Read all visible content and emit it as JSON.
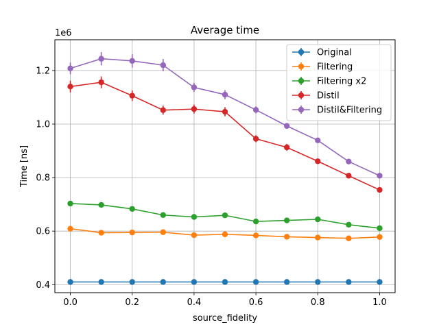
{
  "chart_data": {
    "type": "line",
    "title": "Average time",
    "xlabel": "source_fidelity",
    "ylabel": "Time [ns]",
    "y_scale_label": "1e6",
    "xlim": [
      -0.05,
      1.05
    ],
    "ylim": [
      370000,
      1315000
    ],
    "x_ticks": [
      0.0,
      0.2,
      0.4,
      0.6,
      0.8,
      1.0
    ],
    "x_tick_labels": [
      "0.0",
      "0.2",
      "0.4",
      "0.6",
      "0.8",
      "1.0"
    ],
    "y_ticks": [
      400000,
      600000,
      800000,
      1000000,
      1200000
    ],
    "y_tick_labels": [
      "0.4",
      "0.6",
      "0.8",
      "1.0",
      "1.2"
    ],
    "grid": true,
    "legend_position": "top-right",
    "x": [
      0.0,
      0.1,
      0.2,
      0.3,
      0.4,
      0.5,
      0.6,
      0.7,
      0.8,
      0.9,
      1.0
    ],
    "series": [
      {
        "name": "Original",
        "color": "#1f77b4",
        "values": [
          410000,
          410000,
          410000,
          410000,
          410000,
          410000,
          410000,
          410000,
          410000,
          410000,
          410000
        ],
        "errors": [
          3000,
          3000,
          3000,
          3000,
          3000,
          3000,
          3000,
          3000,
          3000,
          3000,
          3000
        ]
      },
      {
        "name": "Filtering",
        "color": "#ff7f0e",
        "values": [
          609000,
          594000,
          595000,
          596000,
          585000,
          588000,
          584000,
          579000,
          576000,
          573000,
          578000
        ],
        "errors": [
          6000,
          6000,
          6000,
          6000,
          5000,
          5000,
          5000,
          5000,
          5000,
          5000,
          5000
        ]
      },
      {
        "name": "Filtering x2",
        "color": "#2ca02c",
        "values": [
          703000,
          698000,
          683000,
          660000,
          653000,
          659000,
          636000,
          640000,
          644000,
          624000,
          611000
        ],
        "errors": [
          6000,
          6000,
          6000,
          6000,
          5000,
          5000,
          5000,
          5000,
          5000,
          5000,
          5000
        ]
      },
      {
        "name": "Distil",
        "color": "#d62728",
        "values": [
          1140000,
          1156000,
          1106000,
          1052000,
          1056000,
          1046000,
          945000,
          913000,
          861000,
          807000,
          754000
        ],
        "errors": [
          22000,
          22000,
          20000,
          17000,
          17000,
          17000,
          13000,
          13000,
          10000,
          9000,
          9000
        ]
      },
      {
        "name": "Distil&Filtering",
        "color": "#9467bd",
        "values": [
          1208000,
          1244000,
          1236000,
          1220000,
          1137000,
          1110000,
          1053000,
          993000,
          939000,
          860000,
          807000
        ],
        "errors": [
          22000,
          25000,
          25000,
          23000,
          17000,
          17000,
          13000,
          11000,
          9000,
          7000,
          7000
        ]
      }
    ]
  }
}
